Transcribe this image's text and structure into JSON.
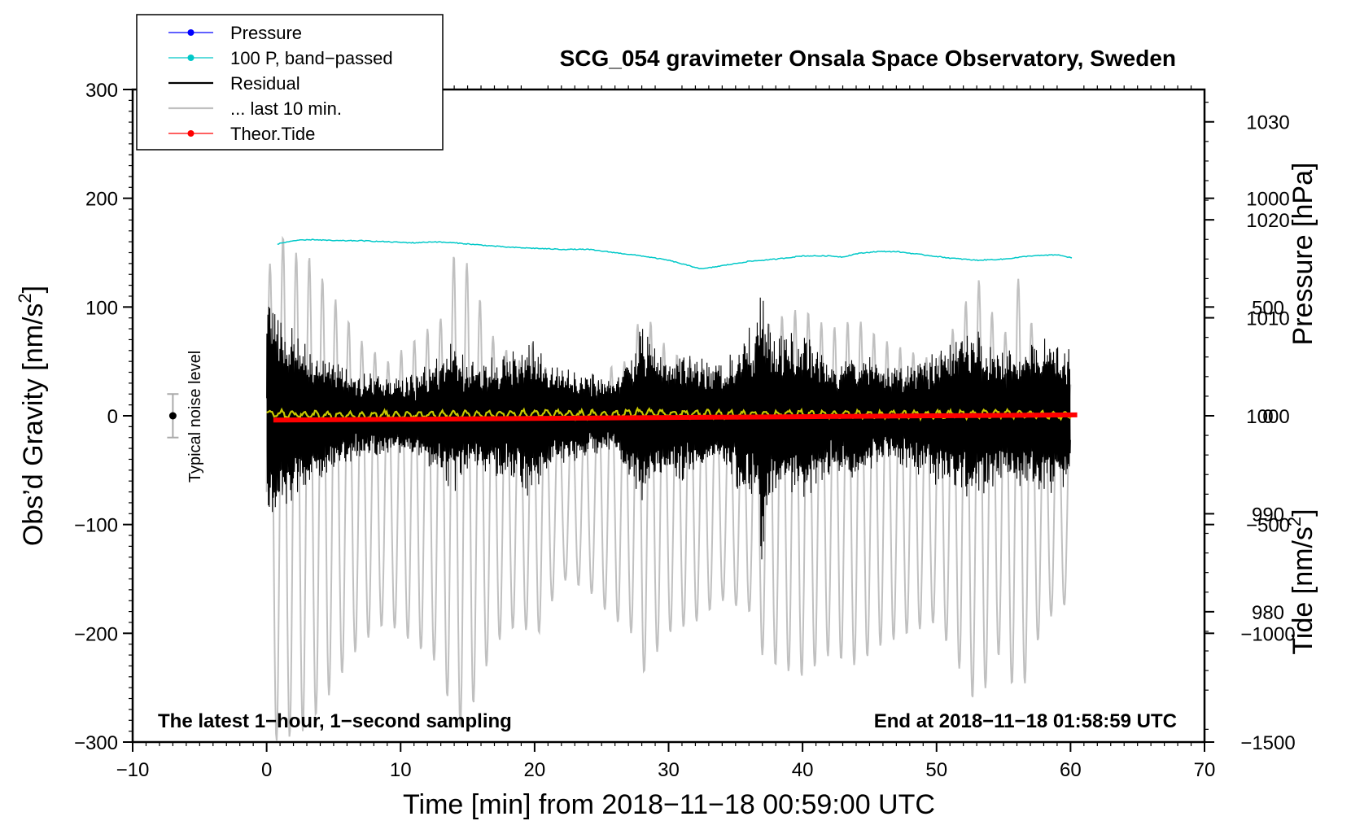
{
  "chart_data": {
    "type": "line",
    "title": "SCG_054 gravimeter Onsala Space Observatory, Sweden",
    "xlabel": "Time [min] from 2018−11−18 00:59:00 UTC",
    "ylabel_left": "Obs’d Gravity [nm/s",
    "ylabel_left_sup": "2",
    "ylabel_left_end": "]",
    "ylabel_right_pressure": "Pressure [hPa]",
    "ylabel_right_tide": "Tide [nm/s",
    "ylabel_right_tide_sup": "2",
    "ylabel_right_tide_end": "]",
    "xlim": [
      -10,
      70
    ],
    "ylim": [
      -300,
      300
    ],
    "pressure_lim": [
      966.7,
      1033.3
    ],
    "tide_lim": [
      -1500,
      1500
    ],
    "x_ticks": [
      -10,
      0,
      10,
      20,
      30,
      40,
      50,
      60,
      70
    ],
    "x_tick_labels": [
      "−10",
      "0",
      "10",
      "20",
      "30",
      "40",
      "50",
      "60",
      "70"
    ],
    "y_ticks": [
      -300,
      -200,
      -100,
      0,
      100,
      200,
      300
    ],
    "y_tick_labels": [
      "−300",
      "−200",
      "−100",
      "0",
      "100",
      "200",
      "300"
    ],
    "pressure_ticks": [
      980,
      990,
      1000,
      1010,
      1020,
      1030
    ],
    "pressure_tick_labels": [
      "980",
      "990",
      "1000",
      "1010",
      "1020",
      "1030"
    ],
    "tide_ticks": [
      -1500,
      -1000,
      -500,
      0,
      500,
      1000
    ],
    "tide_tick_labels": [
      "−1500",
      "−1000",
      "−500",
      "0",
      "500",
      "1000"
    ],
    "legend": [
      {
        "label": "Pressure",
        "color": "#0000ff",
        "marker": true
      },
      {
        "label": "100 P, band−passed",
        "color": "#00c8c8",
        "marker": true
      },
      {
        "label": "Residual",
        "color": "#000000",
        "marker": false
      },
      {
        "label": "... last 10 min.",
        "color": "#c0c0c0",
        "marker": false
      },
      {
        "label": "Theor.Tide",
        "color": "#ff0000",
        "marker": true
      }
    ],
    "annotation_left": "The latest 1−hour, 1−second sampling",
    "annotation_right": "End at 2018−11−18 01:58:59 UTC",
    "noise_label": "Typical noise level",
    "noise_bar": {
      "x": -7,
      "center": 0,
      "half_range": 20
    },
    "series": [
      {
        "name": "Pressure (100 P, band-passed)",
        "axis": "gravity",
        "color": "#00c8c8",
        "x": [
          0.8,
          2,
          3.5,
          5,
          7,
          9,
          11,
          12.5,
          14,
          16,
          18,
          20,
          22,
          24,
          26,
          28,
          30,
          31.5,
          32.5,
          34,
          36,
          38,
          40,
          42,
          43,
          44,
          45.5,
          47,
          49,
          51,
          53,
          55,
          57,
          59,
          60.2
        ],
        "y": [
          158,
          161,
          162,
          161,
          161,
          160,
          159,
          160,
          159,
          157,
          155,
          154,
          153,
          153,
          150,
          147,
          143,
          138,
          135,
          138,
          142,
          144,
          147,
          147,
          146,
          149,
          151,
          151,
          148,
          145,
          143,
          144,
          147,
          148,
          145
        ]
      },
      {
        "name": "Residual",
        "axis": "gravity",
        "color": "#000000",
        "x": [
          0,
          0.5,
          1,
          2,
          4,
          6,
          8,
          10,
          11,
          13,
          14,
          15,
          17,
          19,
          19.5,
          21,
          22,
          24,
          26,
          27,
          28,
          29,
          30,
          31,
          32,
          34,
          35,
          36,
          36.5,
          37,
          37.5,
          38,
          40,
          42,
          44,
          45,
          46,
          48,
          50,
          52,
          53,
          55,
          57,
          59,
          60
        ],
        "y": [
          105,
          110,
          95,
          85,
          60,
          45,
          40,
          35,
          40,
          55,
          75,
          50,
          55,
          65,
          80,
          50,
          45,
          40,
          35,
          65,
          85,
          70,
          55,
          60,
          55,
          50,
          65,
          85,
          80,
          140,
          80,
          75,
          80,
          55,
          60,
          55,
          45,
          50,
          65,
          75,
          80,
          60,
          70,
          75,
          65
        ]
      },
      {
        "name": "Residual low-pass",
        "axis": "gravity",
        "color": "#c8c800",
        "x": [
          0,
          5,
          10,
          15,
          20,
          25,
          28,
          30,
          35,
          40,
          45,
          50,
          55,
          60
        ],
        "y": [
          2,
          0,
          1,
          1,
          2,
          1,
          3,
          2,
          1,
          2,
          1,
          1,
          2,
          0
        ]
      },
      {
        "name": "... last 10 min.",
        "axis": "tide",
        "color": "#c0c0c0",
        "x": [
          0,
          1,
          2,
          3,
          5,
          7,
          9,
          11,
          13,
          14,
          15,
          17,
          19,
          20,
          22,
          24,
          26,
          27,
          28,
          30,
          32,
          34,
          36,
          37,
          38,
          40,
          42,
          44,
          46,
          48,
          50,
          52,
          53,
          55,
          56,
          58,
          60
        ],
        "y": [
          1000,
          1200,
          1100,
          1100,
          900,
          700,
          600,
          700,
          800,
          1100,
          1050,
          700,
          600,
          700,
          400,
          450,
          600,
          600,
          850,
          650,
          600,
          500,
          550,
          750,
          800,
          850,
          750,
          800,
          700,
          650,
          600,
          850,
          1000,
          700,
          1000,
          600,
          500
        ]
      },
      {
        "name": "Theor.Tide",
        "axis": "tide",
        "color": "#ff0000",
        "x": [
          0.5,
          10,
          20,
          30,
          40,
          50,
          60.5
        ],
        "y": [
          -20,
          -16,
          -12,
          -8,
          -4,
          0,
          4
        ]
      }
    ]
  }
}
